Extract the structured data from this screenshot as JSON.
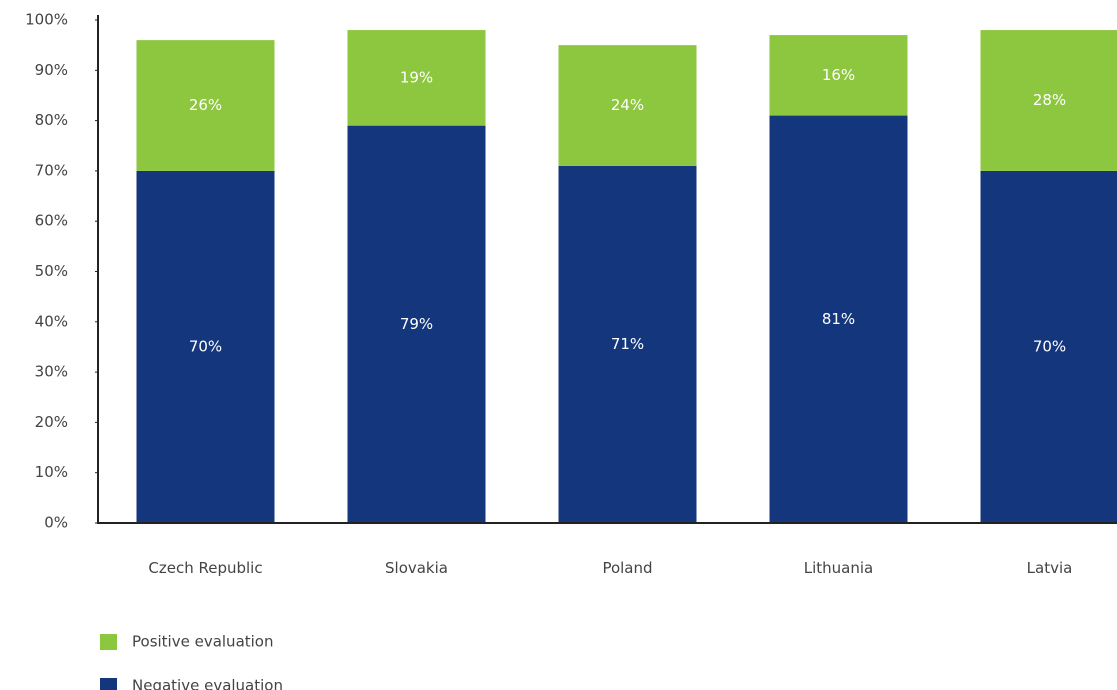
{
  "chart_data": {
    "type": "stacked_bar",
    "categories": [
      "Czech Republic",
      "Slovakia",
      "Poland",
      "Lithuania",
      "Latvia"
    ],
    "series": [
      {
        "name": "Negative evaluation",
        "color": "#14367c",
        "values": [
          70,
          79,
          71,
          81,
          70
        ],
        "value_labels": [
          "70%",
          "79%",
          "71%",
          "81%",
          "70%"
        ]
      },
      {
        "name": "Positive evaluation",
        "color": "#8dc63f",
        "values": [
          26,
          19,
          24,
          16,
          28
        ],
        "value_labels": [
          "26%",
          "19%",
          "24%",
          "16%",
          "28%"
        ]
      }
    ],
    "ylim": [
      0,
      100
    ],
    "yticks": [
      {
        "value": 0,
        "label": "0%"
      },
      {
        "value": 10,
        "label": "10%"
      },
      {
        "value": 20,
        "label": "20%"
      },
      {
        "value": 30,
        "label": "30%"
      },
      {
        "value": 40,
        "label": "40%"
      },
      {
        "value": 50,
        "label": "50%"
      },
      {
        "value": 60,
        "label": "60%"
      },
      {
        "value": 70,
        "label": "70%"
      },
      {
        "value": 80,
        "label": "80%"
      },
      {
        "value": 90,
        "label": "90%"
      },
      {
        "value": 100,
        "label": "100%"
      }
    ],
    "grid": false
  }
}
